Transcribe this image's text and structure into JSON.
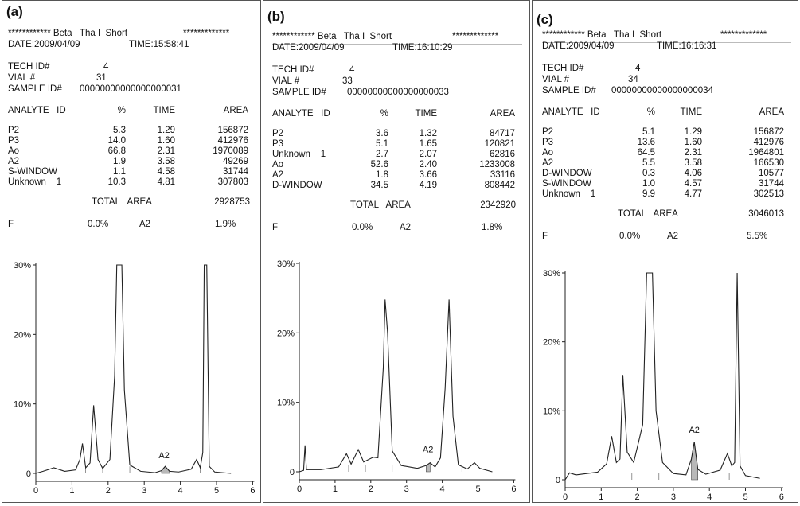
{
  "panels": [
    {
      "label": "(a)",
      "banner_left": "************ Beta   Tha I  Short",
      "banner_right": "*************",
      "date": "DATE:2009/04/09",
      "time": "TIME:15:58:41",
      "tech_label": "TECH ID#",
      "tech_value": "4",
      "vial_label": "VIAL #",
      "vial_value": "31",
      "sample_label": "SAMPLE ID#",
      "sample_value": "00000000000000000031",
      "col_analyte": "ANALYTE   ID",
      "col_pct": "%",
      "col_time": "TIME",
      "col_area": "AREA",
      "rows": [
        {
          "name": "P2",
          "pct": "5.3",
          "time": "1.29",
          "area": "156872"
        },
        {
          "name": "P3",
          "pct": "14.0",
          "time": "1.60",
          "area": "412976"
        },
        {
          "name": "Ao",
          "pct": "66.8",
          "time": "2.31",
          "area": "1970089"
        },
        {
          "name": "A2",
          "pct": "1.9",
          "time": "3.58",
          "area": "49269"
        },
        {
          "name": "S-WINDOW",
          "pct": "1.1",
          "time": "4.58",
          "area": "31744"
        },
        {
          "name": "Unknown    1",
          "pct": "10.3",
          "time": "4.81",
          "area": "307803"
        }
      ],
      "total_label": "TOTAL   AREA",
      "total_value": "2928753",
      "f_label": "F",
      "f_pct": "0.0%",
      "f_name": "A2",
      "f_value": "1.9%"
    },
    {
      "label": "(b)",
      "banner_left": "************ Beta   Tha I  Short",
      "banner_right": "*************",
      "date": "DATE:2009/04/09",
      "time": "TIME:16:10:29",
      "tech_label": "TECH ID#",
      "tech_value": "4",
      "vial_label": "VIAL #",
      "vial_value": "33",
      "sample_label": "SAMPLE ID#",
      "sample_value": "00000000000000000033",
      "col_analyte": "ANALYTE   ID",
      "col_pct": "%",
      "col_time": "TIME",
      "col_area": "AREA",
      "rows": [
        {
          "name": "P2",
          "pct": "3.6",
          "time": "1.32",
          "area": "84717"
        },
        {
          "name": "P3",
          "pct": "5.1",
          "time": "1.65",
          "area": "120821"
        },
        {
          "name": "Unknown    1",
          "pct": "2.7",
          "time": "2.07",
          "area": "62816"
        },
        {
          "name": "Ao",
          "pct": "52.6",
          "time": "2.40",
          "area": "1233008"
        },
        {
          "name": "A2",
          "pct": "1.8",
          "time": "3.66",
          "area": "33116"
        },
        {
          "name": "D-WINDOW",
          "pct": "34.5",
          "time": "4.19",
          "area": "808442"
        }
      ],
      "total_label": "TOTAL   AREA",
      "total_value": "2342920",
      "f_label": "F",
      "f_pct": "0.0%",
      "f_name": "A2",
      "f_value": "1.8%"
    },
    {
      "label": "(c)",
      "banner_left": "************ Beta   Tha I  Short",
      "banner_right": "*************",
      "date": "DATE:2009/04/09",
      "time": "TIME:16:16:31",
      "tech_label": "TECH ID#",
      "tech_value": "4",
      "vial_label": "VIAL #",
      "vial_value": "34",
      "sample_label": "SAMPLE ID#",
      "sample_value": "00000000000000000034",
      "col_analyte": "ANALYTE   ID",
      "col_pct": "%",
      "col_time": "TIME",
      "col_area": "AREA",
      "rows": [
        {
          "name": "P2",
          "pct": "5.1",
          "time": "1.29",
          "area": "156872"
        },
        {
          "name": "P3",
          "pct": "13.6",
          "time": "1.60",
          "area": "412976"
        },
        {
          "name": "Ao",
          "pct": "64.5",
          "time": "2.31",
          "area": "1964801"
        },
        {
          "name": "A2",
          "pct": "5.5",
          "time": "3.58",
          "area": "166530"
        },
        {
          "name": "D-WINDOW",
          "pct": "0.3",
          "time": "4.06",
          "area": "10577"
        },
        {
          "name": "S-WINDOW",
          "pct": "1.0",
          "time": "4.57",
          "area": "31744"
        },
        {
          "name": "Unknown    1",
          "pct": "9.9",
          "time": "4.77",
          "area": "302513"
        }
      ],
      "total_label": "TOTAL   AREA",
      "total_value": "3046013",
      "f_label": "F",
      "f_pct": "0.0%",
      "f_name": "A2",
      "f_value": "5.5%"
    }
  ],
  "chart_data": [
    {
      "type": "line",
      "panel": "(a)",
      "xlim": [
        0,
        6
      ],
      "ylim": [
        0,
        30
      ],
      "x_ticks": [
        "0",
        "1",
        "2",
        "3",
        "4",
        "5",
        "6"
      ],
      "y_ticks": [
        "0",
        "10%",
        "20%",
        "30%"
      ],
      "annotation": "A2",
      "shaded": "A2",
      "trace": [
        [
          0,
          0
        ],
        [
          0.2,
          0.3
        ],
        [
          0.5,
          0.8
        ],
        [
          0.8,
          0.3
        ],
        [
          1.1,
          0.5
        ],
        [
          1.22,
          2
        ],
        [
          1.29,
          4.3
        ],
        [
          1.38,
          0.8
        ],
        [
          1.5,
          1.5
        ],
        [
          1.6,
          9.8
        ],
        [
          1.72,
          2
        ],
        [
          1.85,
          0.7
        ],
        [
          2.05,
          2
        ],
        [
          2.18,
          14
        ],
        [
          2.24,
          30
        ],
        [
          2.38,
          30
        ],
        [
          2.45,
          12
        ],
        [
          2.6,
          1.2
        ],
        [
          2.9,
          0.3
        ],
        [
          3.3,
          0.1
        ],
        [
          3.48,
          0.4
        ],
        [
          3.58,
          1.0
        ],
        [
          3.7,
          0.3
        ],
        [
          3.95,
          0.2
        ],
        [
          4.3,
          0.6
        ],
        [
          4.45,
          2
        ],
        [
          4.55,
          0.8
        ],
        [
          4.62,
          3
        ],
        [
          4.66,
          30
        ],
        [
          4.73,
          30
        ],
        [
          4.8,
          1
        ],
        [
          4.95,
          0.2
        ],
        [
          5.4,
          0
        ]
      ]
    },
    {
      "type": "line",
      "panel": "(b)",
      "xlim": [
        0,
        6
      ],
      "ylim": [
        0,
        30
      ],
      "x_ticks": [
        "0",
        "1",
        "2",
        "3",
        "4",
        "5",
        "6"
      ],
      "y_ticks": [
        "0",
        "10%",
        "20%",
        "30%"
      ],
      "annotation": "A2",
      "shaded": "A2",
      "trace": [
        [
          0,
          0
        ],
        [
          0.12,
          0.2
        ],
        [
          0.16,
          3.8
        ],
        [
          0.2,
          0.3
        ],
        [
          0.6,
          0.3
        ],
        [
          1.1,
          0.7
        ],
        [
          1.32,
          2.6
        ],
        [
          1.45,
          1.1
        ],
        [
          1.65,
          3.2
        ],
        [
          1.8,
          1.4
        ],
        [
          2.07,
          2.1
        ],
        [
          2.2,
          2
        ],
        [
          2.35,
          15
        ],
        [
          2.4,
          24.8
        ],
        [
          2.47,
          20
        ],
        [
          2.6,
          3
        ],
        [
          2.85,
          0.9
        ],
        [
          3.3,
          0.5
        ],
        [
          3.55,
          0.9
        ],
        [
          3.66,
          1.3
        ],
        [
          3.8,
          0.7
        ],
        [
          3.95,
          2
        ],
        [
          4.08,
          12
        ],
        [
          4.19,
          24.8
        ],
        [
          4.3,
          8
        ],
        [
          4.45,
          1
        ],
        [
          4.7,
          0.4
        ],
        [
          4.9,
          1.3
        ],
        [
          5.05,
          0.5
        ],
        [
          5.4,
          0
        ]
      ]
    },
    {
      "type": "line",
      "panel": "(c)",
      "xlim": [
        0,
        6
      ],
      "ylim": [
        0,
        30
      ],
      "x_ticks": [
        "0",
        "1",
        "2",
        "3",
        "4",
        "5",
        "6"
      ],
      "y_ticks": [
        "0",
        "10%",
        "20%",
        "30%"
      ],
      "annotation": "A2",
      "shaded": "A2",
      "trace": [
        [
          0,
          0
        ],
        [
          0.12,
          1
        ],
        [
          0.3,
          0.7
        ],
        [
          0.6,
          0.9
        ],
        [
          0.9,
          1.1
        ],
        [
          1.15,
          2.3
        ],
        [
          1.29,
          6.3
        ],
        [
          1.42,
          2.5
        ],
        [
          1.52,
          3
        ],
        [
          1.6,
          15.2
        ],
        [
          1.72,
          4
        ],
        [
          1.9,
          2.5
        ],
        [
          2.15,
          8
        ],
        [
          2.26,
          30
        ],
        [
          2.42,
          30
        ],
        [
          2.52,
          10
        ],
        [
          2.7,
          2.5
        ],
        [
          3.0,
          0.9
        ],
        [
          3.35,
          0.7
        ],
        [
          3.5,
          3
        ],
        [
          3.58,
          5.5
        ],
        [
          3.68,
          1.5
        ],
        [
          3.9,
          0.8
        ],
        [
          4.3,
          1.4
        ],
        [
          4.5,
          3.8
        ],
        [
          4.62,
          2
        ],
        [
          4.7,
          2.5
        ],
        [
          4.77,
          30
        ],
        [
          4.85,
          2
        ],
        [
          5.0,
          0.6
        ],
        [
          5.4,
          0.2
        ]
      ]
    }
  ]
}
